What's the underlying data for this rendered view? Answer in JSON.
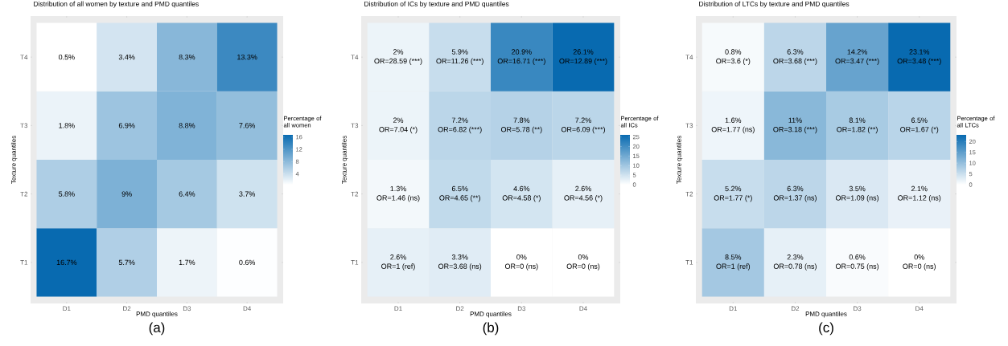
{
  "chart_data": [
    {
      "type": "heatmap",
      "title": "Distribution of all women by texture and PMD quantiles",
      "xlabel": "PMD quantiles",
      "ylabel": "Texture quantiles",
      "clabel": "Percentage of all women",
      "categories": [
        "D1",
        "D2",
        "D3",
        "D4"
      ],
      "y_categories": [
        "T4",
        "T3",
        "T2",
        "T1"
      ],
      "cells": [
        [
          0.5,
          3.4,
          8.3,
          13.3
        ],
        [
          1.8,
          6.9,
          8.8,
          7.6
        ],
        [
          5.8,
          9,
          6.4,
          3.7
        ],
        [
          16.7,
          5.7,
          1.7,
          0.6
        ]
      ],
      "cell_labels": [
        [
          "0.5%",
          "3.4%",
          "8.3%",
          "13.3%"
        ],
        [
          "1.8%",
          "6.9%",
          "8.8%",
          "7.6%"
        ],
        [
          "5.8%",
          "9%",
          "6.4%",
          "3.7%"
        ],
        [
          "16.7%",
          "5.7%",
          "1.7%",
          "0.6%"
        ]
      ],
      "clim": [
        0.5,
        16.7
      ],
      "cticks": [
        4,
        8,
        12,
        16
      ],
      "annotations": [
        "(a)"
      ]
    },
    {
      "type": "heatmap",
      "title": "Distribution of ICs by texture and PMD quantiles",
      "xlabel": "PMD quantiles",
      "ylabel": "Texture quantiles",
      "clabel": "Percentage of all ICs",
      "categories": [
        "D1",
        "D2",
        "D3",
        "D4"
      ],
      "y_categories": [
        "T4",
        "T3",
        "T2",
        "T1"
      ],
      "cells": [
        [
          2,
          5.9,
          20.9,
          26.1
        ],
        [
          2,
          7.2,
          7.8,
          7.2
        ],
        [
          1.3,
          6.5,
          4.6,
          2.6
        ],
        [
          2.6,
          3.3,
          0,
          0
        ]
      ],
      "cell_labels": [
        [
          "2%\nOR=28.59 (***)",
          "5.9%\nOR=11.26 (***)",
          "20.9%\nOR=16.71 (***)",
          "26.1%\nOR=12.89 (***)"
        ],
        [
          "2%\nOR=7.04 (*)",
          "7.2%\nOR=6.82 (***)",
          "7.8%\nOR=5.78 (**)",
          "7.2%\nOR=6.09 (***)"
        ],
        [
          "1.3%\nOR=1.46 (ns)",
          "6.5%\nOR=4.65 (**)",
          "4.6%\nOR=4.58 (*)",
          "2.6%\nOR=4.56 (*)"
        ],
        [
          "2.6%\nOR=1 (ref)",
          "3.3%\nOR=3.68 (ns)",
          "0%\nOR=0 (ns)",
          "0%\nOR=0 (ns)"
        ]
      ],
      "clim": [
        0,
        26.1
      ],
      "cticks": [
        0,
        5,
        10,
        15,
        20,
        25
      ],
      "annotations": [
        "(b)"
      ]
    },
    {
      "type": "heatmap",
      "title": "Distribution of LTCs by texture and PMD quantiles",
      "xlabel": "PMD quantiles",
      "ylabel": "Texture quantiles",
      "clabel": "Percentage of all LTCs",
      "categories": [
        "D1",
        "D2",
        "D3",
        "D4"
      ],
      "y_categories": [
        "T4",
        "T3",
        "T2",
        "T1"
      ],
      "cells": [
        [
          0.8,
          6.3,
          14.2,
          23.1
        ],
        [
          1.6,
          11,
          8.1,
          6.5
        ],
        [
          5.2,
          6.3,
          3.5,
          2.1
        ],
        [
          8.5,
          2.3,
          0.6,
          0
        ]
      ],
      "cell_labels": [
        [
          "0.8%\nOR=3.6 (*)",
          "6.3%\nOR=3.68 (***)",
          "14.2%\nOR=3.47 (***)",
          "23.1%\nOR=3.48 (***)"
        ],
        [
          "1.6%\nOR=1.77 (ns)",
          "11%\nOR=3.18 (***)",
          "8.1%\nOR=1.82 (**)",
          "6.5%\nOR=1.67 (*)"
        ],
        [
          "5.2%\nOR=1.77 (*)",
          "6.3%\nOR=1.37 (ns)",
          "3.5%\nOR=1.09 (ns)",
          "2.1%\nOR=1.12 (ns)"
        ],
        [
          "8.5%\nOR=1 (ref)",
          "2.3%\nOR=0.78 (ns)",
          "0.6%\nOR=0.75 (ns)",
          "0%\nOR=0 (ns)"
        ]
      ],
      "clim": [
        0,
        23.1
      ],
      "cticks": [
        0,
        5,
        10,
        15,
        20
      ],
      "annotations": [
        "(c)"
      ]
    }
  ]
}
